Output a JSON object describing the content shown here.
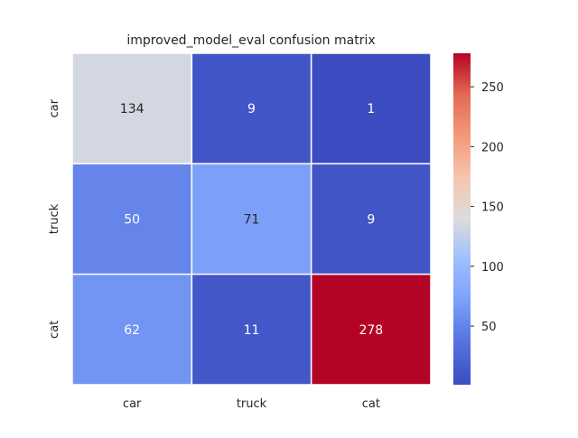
{
  "chart_data": {
    "type": "heatmap",
    "title": "improved_model_eval confusion matrix",
    "xlabel": "",
    "ylabel": "",
    "x_categories": [
      "car",
      "truck",
      "cat"
    ],
    "y_categories": [
      "car",
      "truck",
      "cat"
    ],
    "values": [
      [
        134,
        9,
        1
      ],
      [
        50,
        71,
        9
      ],
      [
        62,
        11,
        278
      ]
    ],
    "colormap": "coolwarm",
    "color_range": [
      1,
      278
    ],
    "colorbar_ticks": [
      50,
      100,
      150,
      200,
      250
    ],
    "colorbar_location": "right",
    "annotations": true,
    "grid": false
  }
}
